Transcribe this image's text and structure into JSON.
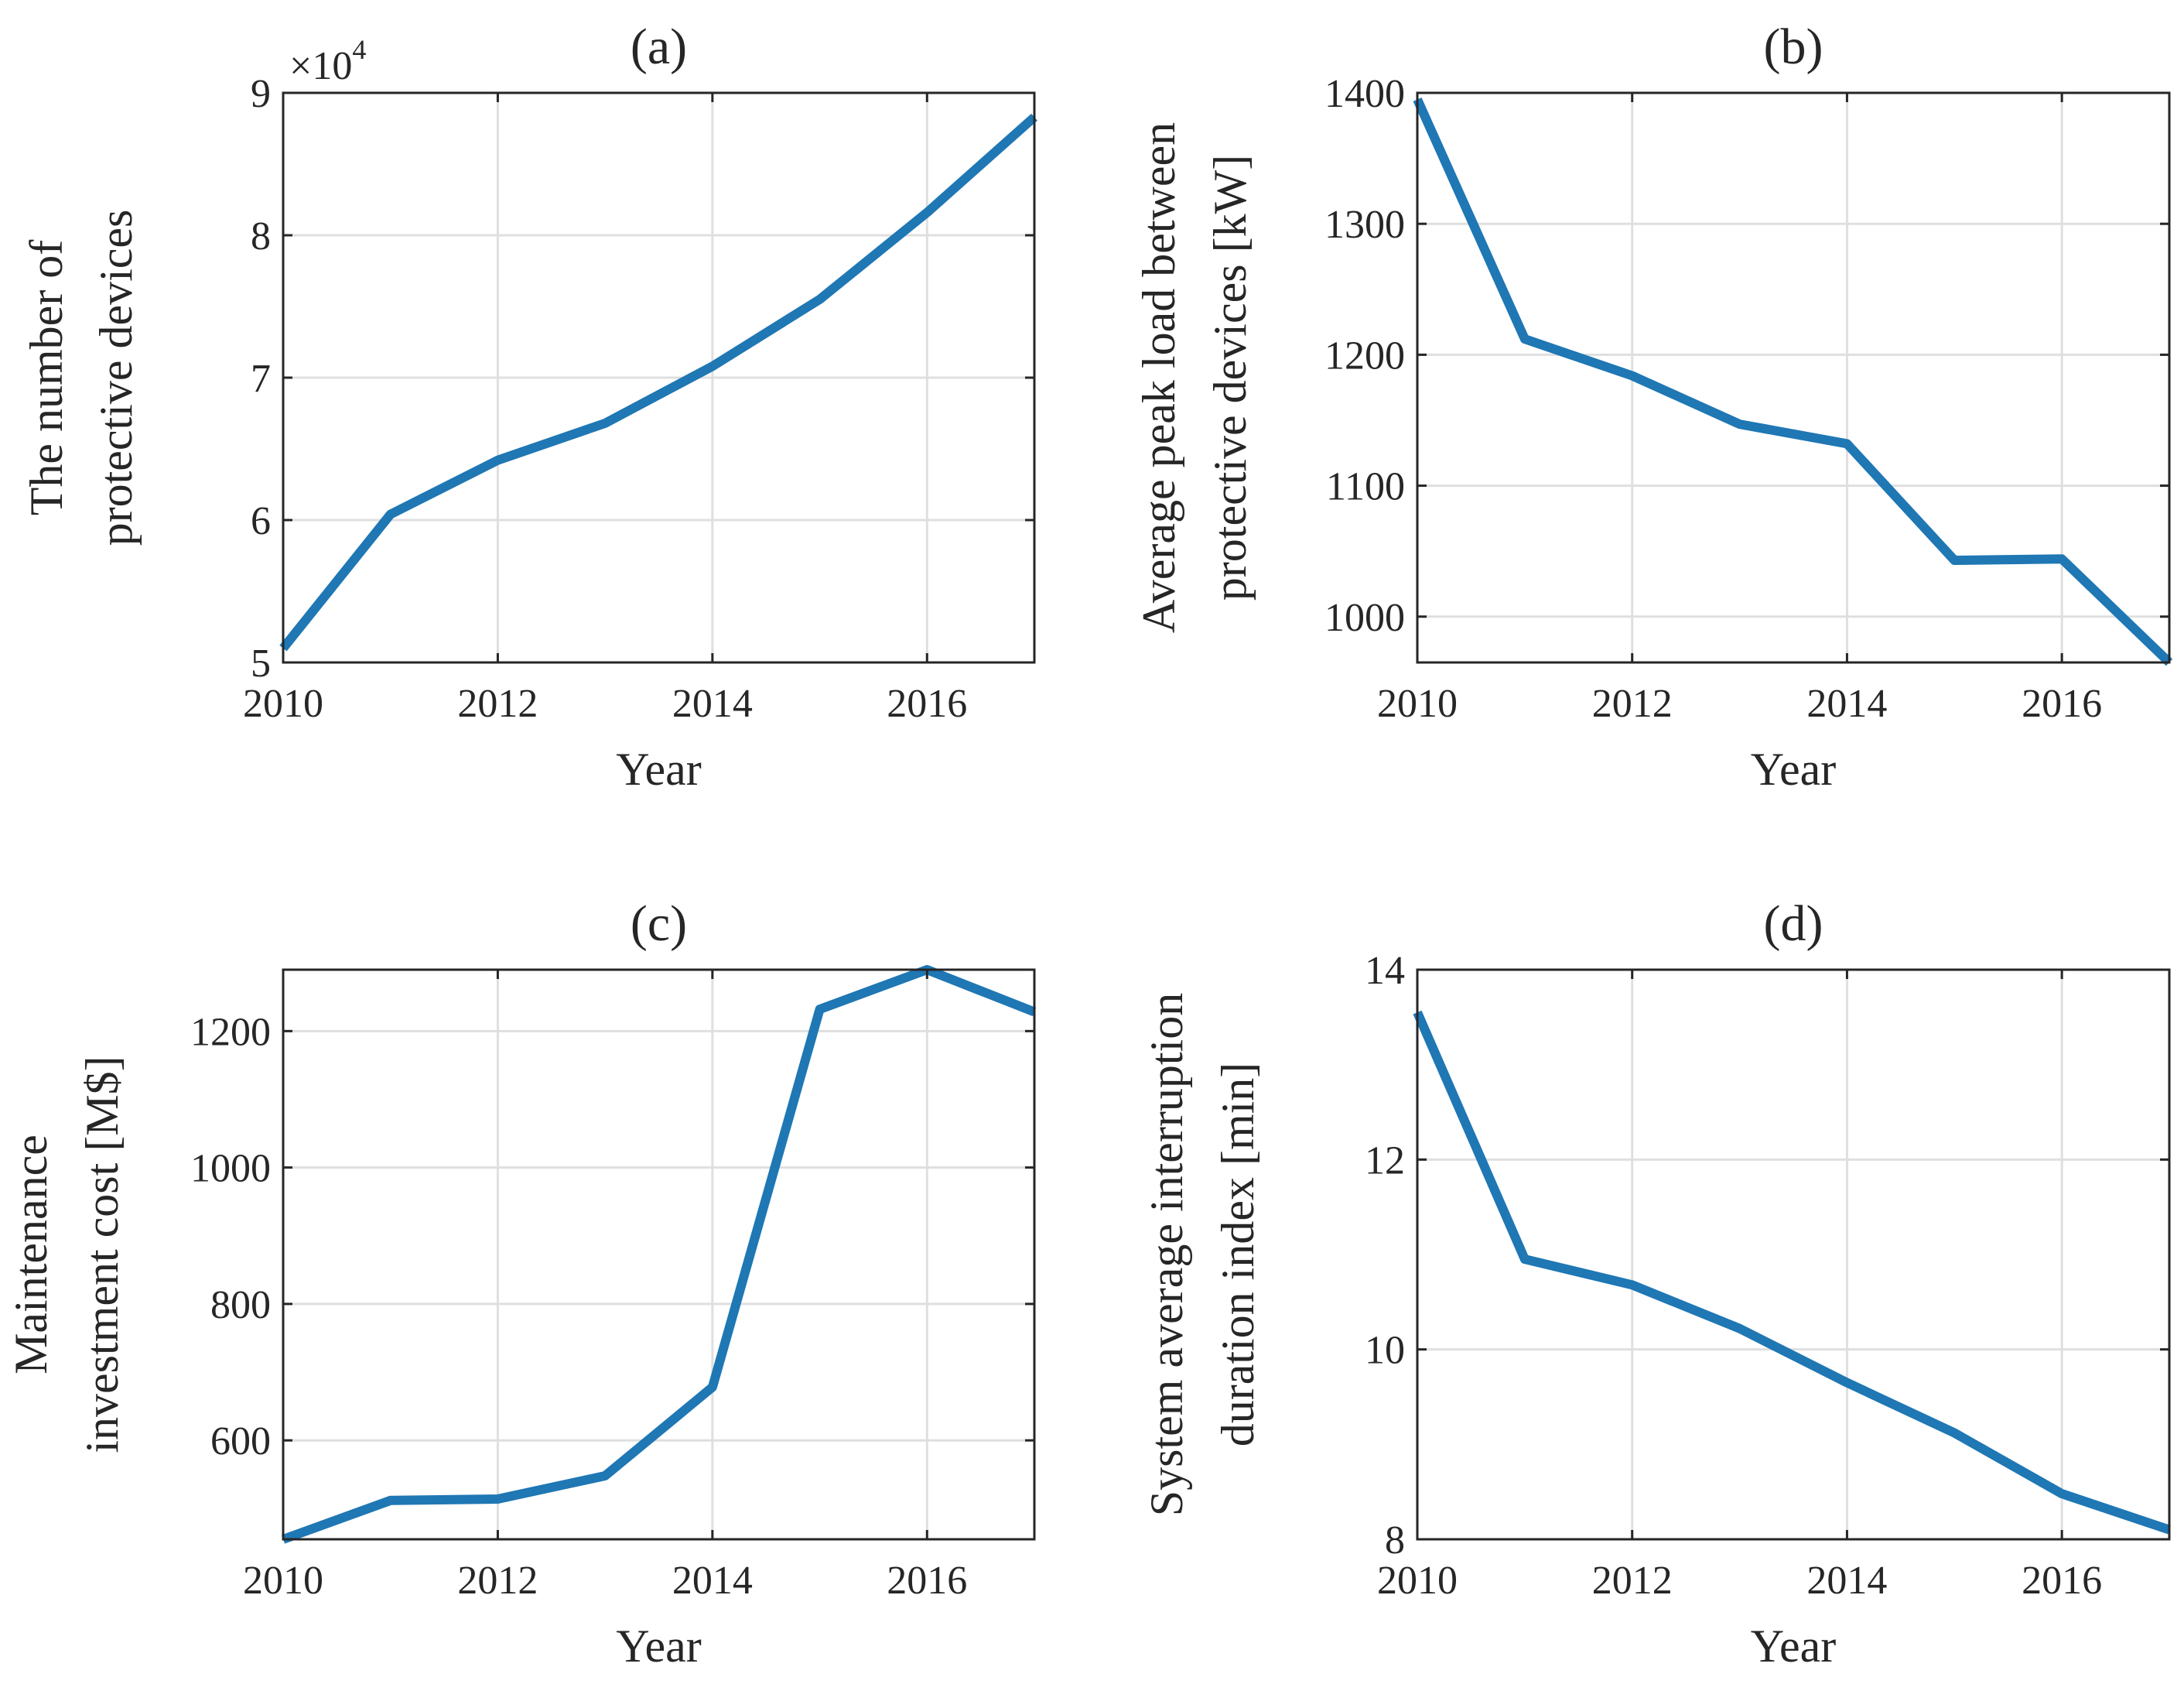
{
  "figure": {
    "series_color": "#1f77b4"
  },
  "chart_data": [
    {
      "id": "a",
      "type": "line",
      "title": "(a)",
      "xlabel": "Year",
      "ylabel": [
        "The number of",
        "protective devices"
      ],
      "x": [
        2010,
        2011,
        2012,
        2013,
        2014,
        2015,
        2016,
        2017
      ],
      "values": [
        51000,
        60400,
        64200,
        66800,
        70800,
        75500,
        81600,
        88300
      ],
      "xlim": [
        2010,
        2017
      ],
      "ylim": [
        50000,
        90000
      ],
      "xticks": [
        2010,
        2012,
        2014,
        2016
      ],
      "yticks": [
        50000,
        60000,
        70000,
        80000,
        90000
      ],
      "ytick_labels": [
        "5",
        "6",
        "7",
        "8",
        "9"
      ],
      "exponent": {
        "base": "×10",
        "power": "4"
      },
      "grid": true
    },
    {
      "id": "b",
      "type": "line",
      "title": "(b)",
      "xlabel": "Year",
      "ylabel": [
        "Average peak load between",
        "protective devices [kW]"
      ],
      "x": [
        2010,
        2011,
        2012,
        2013,
        2014,
        2015,
        2016,
        2017
      ],
      "values": [
        1395,
        1212,
        1184,
        1147,
        1132,
        1043,
        1044,
        965
      ],
      "xlim": [
        2010,
        2017
      ],
      "ylim": [
        965,
        1400
      ],
      "xticks": [
        2010,
        2012,
        2014,
        2016
      ],
      "yticks": [
        1000,
        1100,
        1200,
        1300,
        1400
      ],
      "ytick_labels": [
        "1000",
        "1100",
        "1200",
        "1300",
        "1400"
      ],
      "grid": true
    },
    {
      "id": "c",
      "type": "line",
      "title": "(c)",
      "xlabel": "Year",
      "ylabel": [
        "Maintenance",
        "investment cost [M$]"
      ],
      "x": [
        2010,
        2011,
        2012,
        2013,
        2014,
        2015,
        2016,
        2017
      ],
      "values": [
        455,
        512,
        514,
        548,
        678,
        1232,
        1290,
        1228
      ],
      "xlim": [
        2010,
        2017
      ],
      "ylim": [
        455,
        1290
      ],
      "xticks": [
        2010,
        2012,
        2014,
        2016
      ],
      "yticks": [
        600,
        800,
        1000,
        1200
      ],
      "ytick_labels": [
        "600",
        "800",
        "1000",
        "1200"
      ],
      "grid": true
    },
    {
      "id": "d",
      "type": "line",
      "title": "(d)",
      "xlabel": "Year",
      "ylabel": [
        "System average interruption",
        "duration index [min]"
      ],
      "x": [
        2010,
        2011,
        2012,
        2013,
        2014,
        2015,
        2016,
        2017
      ],
      "values": [
        13.55,
        10.95,
        10.68,
        10.22,
        9.65,
        9.12,
        8.48,
        8.1
      ],
      "xlim": [
        2010,
        2017
      ],
      "ylim": [
        8,
        14
      ],
      "xticks": [
        2010,
        2012,
        2014,
        2016
      ],
      "yticks": [
        8,
        10,
        12,
        14
      ],
      "ytick_labels": [
        "8",
        "10",
        "12",
        "14"
      ],
      "grid": true
    }
  ]
}
